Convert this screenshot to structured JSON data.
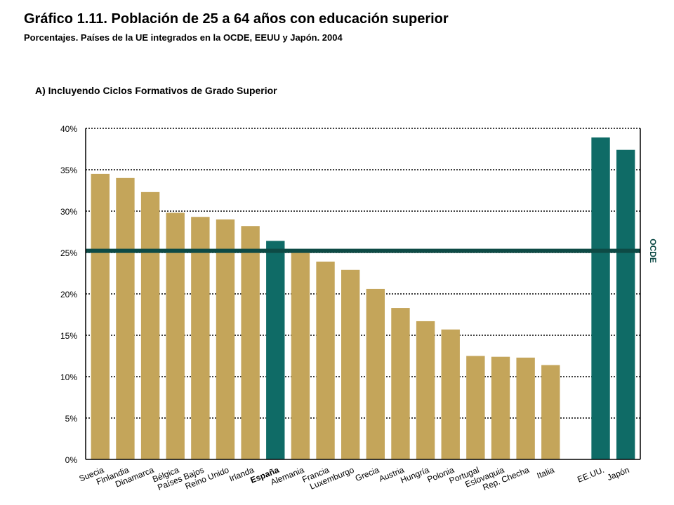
{
  "header": {
    "title": "Gráfico 1.11. Población de 25 a 64 años con educación superior",
    "subtitle": "Porcentajes. Países de la UE integrados en la OCDE, EEUU y Japón. 2004",
    "panel_label": "A) Incluyendo Ciclos Formativos de Grado Superior"
  },
  "colors": {
    "eu_bar": "#C4A55A",
    "highlight_bar": "#0F6B66",
    "reference_line": "#0D4A45",
    "gridline": "#000000"
  },
  "chart_data": {
    "type": "bar",
    "title": "",
    "xlabel": "",
    "ylabel": "",
    "ylim": [
      0,
      40
    ],
    "y_ticks": [
      "0%",
      "5%",
      "10%",
      "15%",
      "20%",
      "25%",
      "30%",
      "35%",
      "40%"
    ],
    "grid": "horizontal dotted",
    "categories": [
      "Suecia",
      "Finlandia",
      "Dinamarca",
      "Bélgica",
      "Países Bajos",
      "Reino Unido",
      "Irlanda",
      "España",
      "Alemania",
      "Francia",
      "Luxemburgo",
      "Grecia",
      "Austria",
      "Hungría",
      "Polonia",
      "Portugal",
      "Eslovaquia",
      "Rep. Checha",
      "Italia",
      "EE.UU.",
      "Japón"
    ],
    "values": [
      34.5,
      34.0,
      32.3,
      29.8,
      29.3,
      29.0,
      28.2,
      26.4,
      25.1,
      23.9,
      22.9,
      20.6,
      18.3,
      16.7,
      15.7,
      12.5,
      12.4,
      12.3,
      11.4,
      38.9,
      37.4
    ],
    "highlighted": [
      "España",
      "EE.UU.",
      "Japón"
    ],
    "reference_line": {
      "label": "OCDE",
      "value": 25.2
    }
  }
}
